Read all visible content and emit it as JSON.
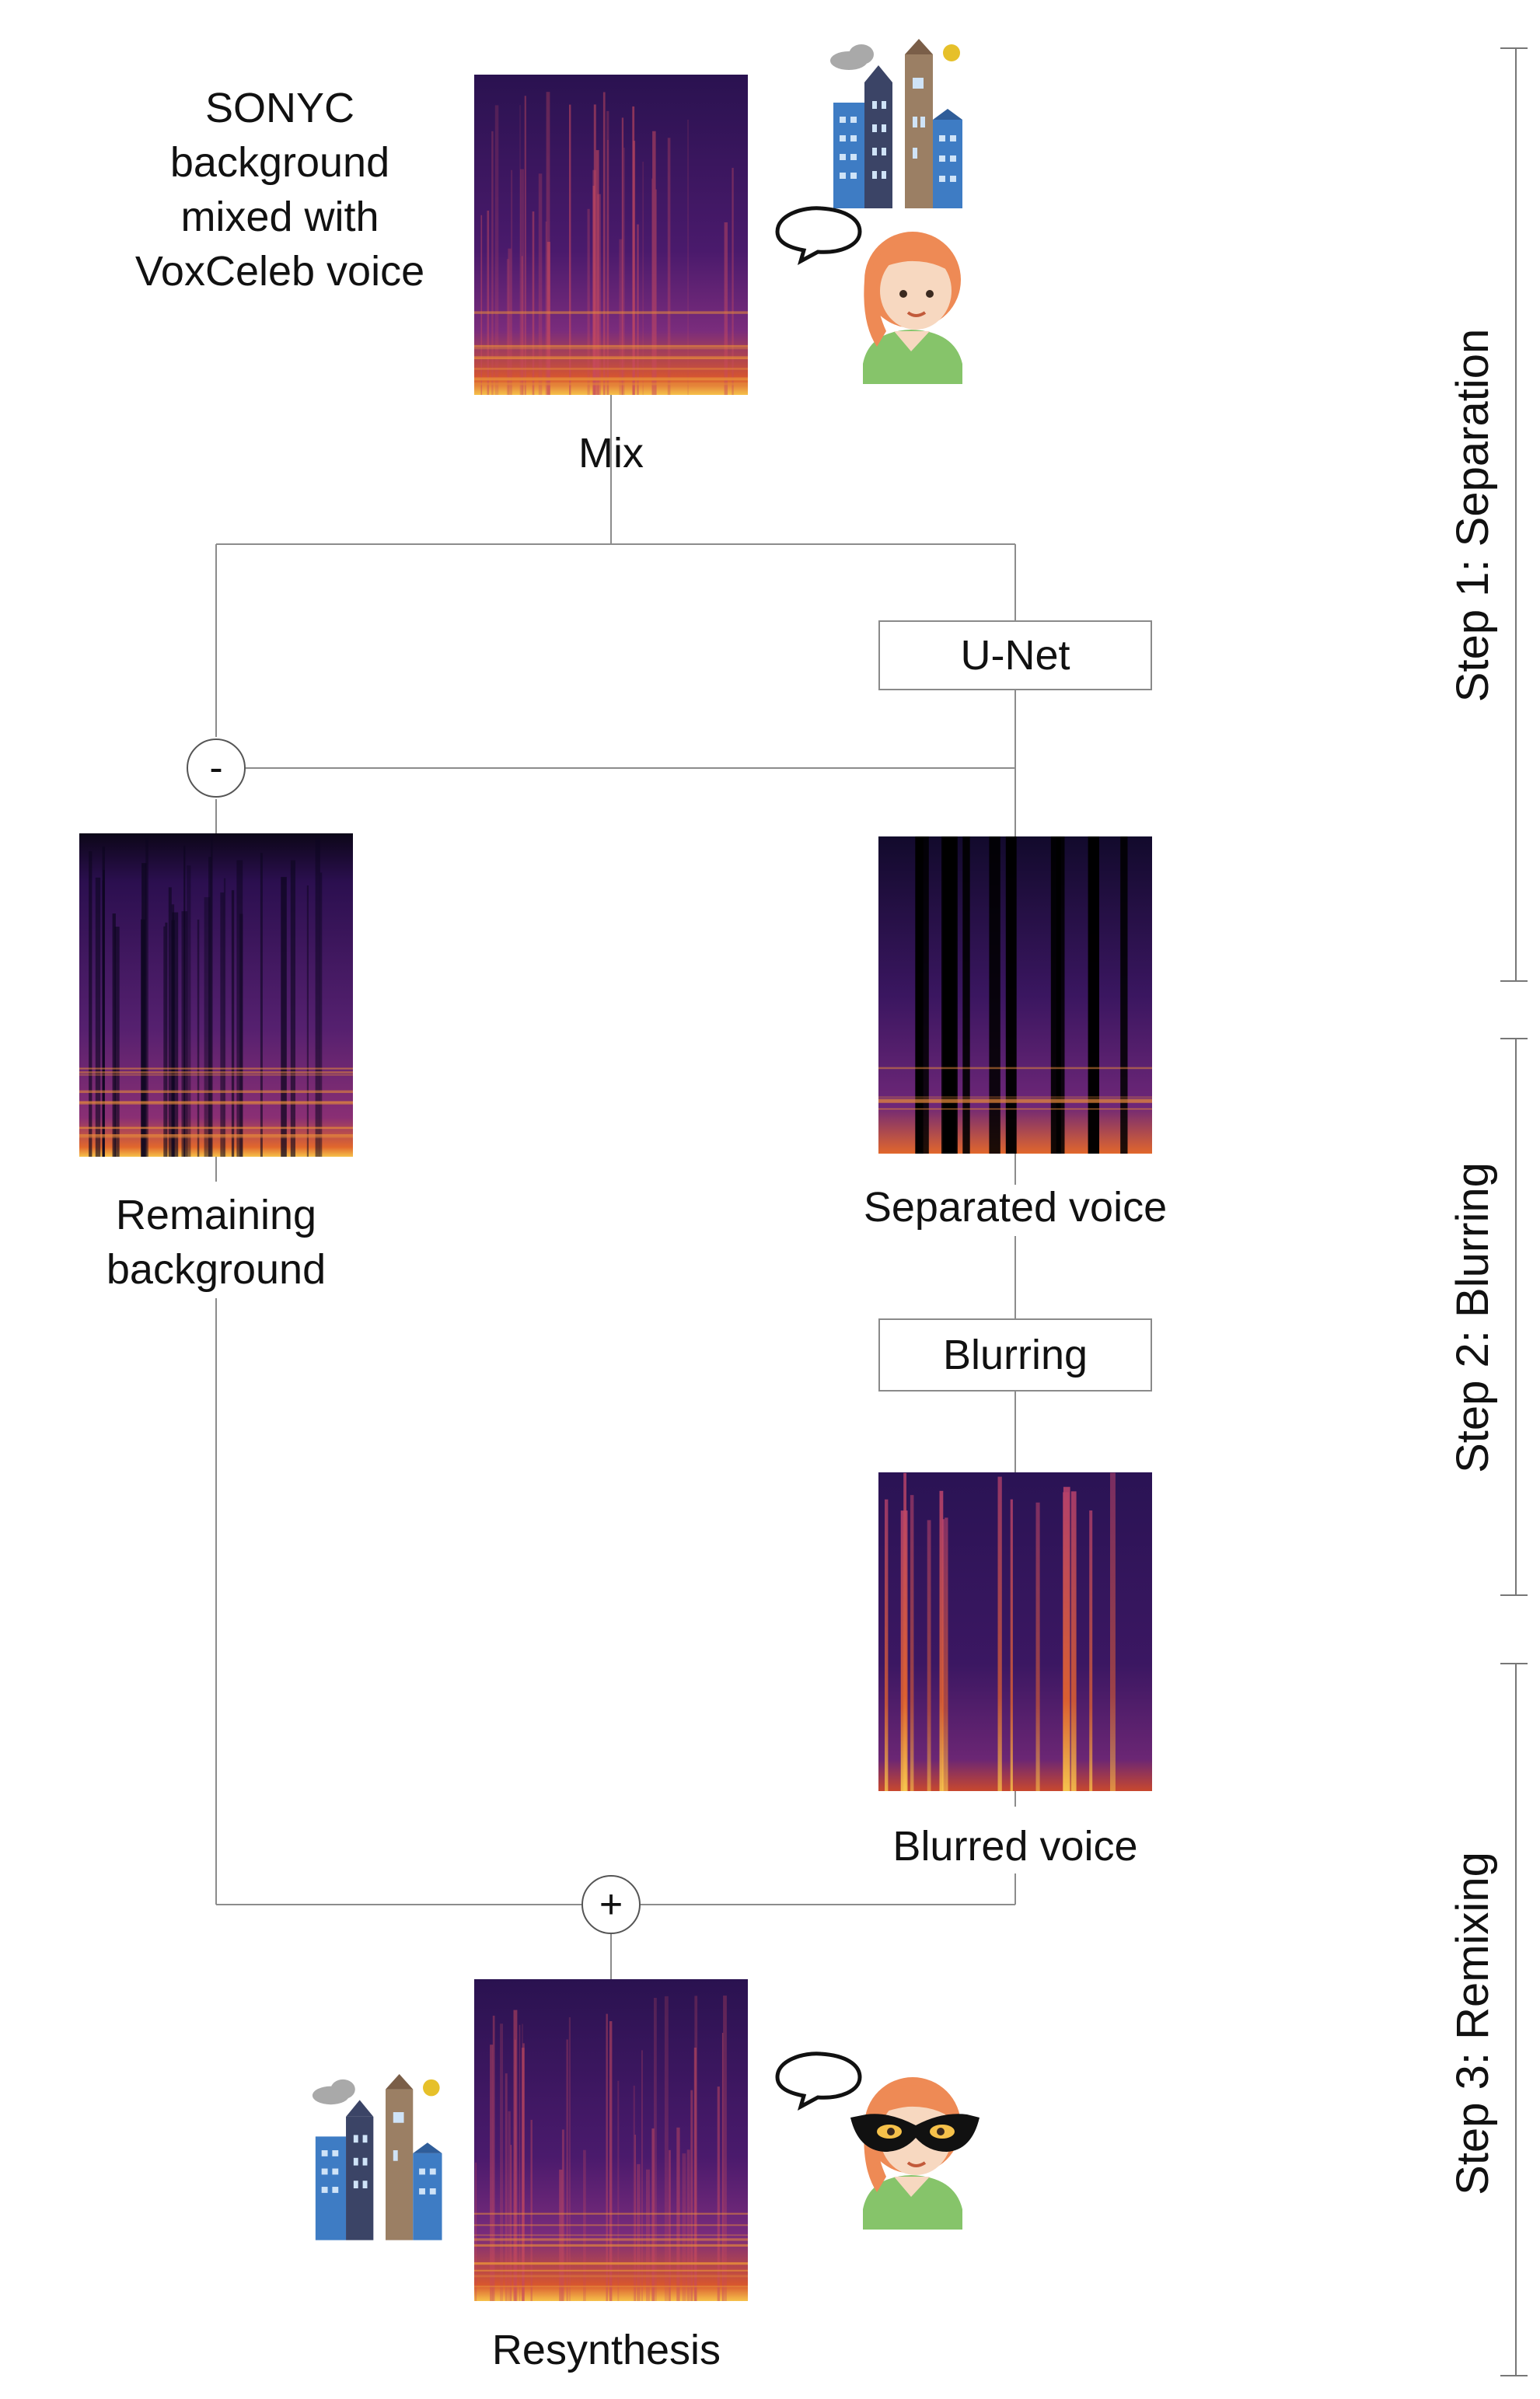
{
  "inputs": {
    "mix_description": [
      "SONYC",
      "background",
      "mixed with",
      "VoxCeleb voice"
    ]
  },
  "nodes": {
    "mix_label": "Mix",
    "unet_label": "U-Net",
    "subtract_symbol": "-",
    "remaining_label": [
      "Remaining",
      "background"
    ],
    "separated_label": "Separated voice",
    "blurring_label": "Blurring",
    "blurred_label": "Blurred voice",
    "add_symbol": "+",
    "resynthesis_label": "Resynthesis"
  },
  "steps": {
    "step1": "Step 1: Separation",
    "step2": "Step 2: Blurring",
    "step3": "Step 3: Remixing"
  },
  "colors": {
    "spectro_dark": "#160a2e",
    "spectro_mid": "#5b1f7a",
    "spectro_hot": "#e8762c",
    "spectro_yellow": "#f6c14a",
    "building_blue": "#3e7cc4",
    "building_navy": "#3b4466",
    "building_tan": "#9b7f64",
    "cloud": "#a9a9a9",
    "sun": "#e6c02a",
    "skin": "#f7d8c0",
    "hair": "#ee8a55",
    "shirt": "#86c46a",
    "mask": "#111111"
  },
  "icons": [
    "city-icon",
    "woman-speaking-icon",
    "masked-woman-speaking-icon",
    "speech-bubble-icon"
  ]
}
